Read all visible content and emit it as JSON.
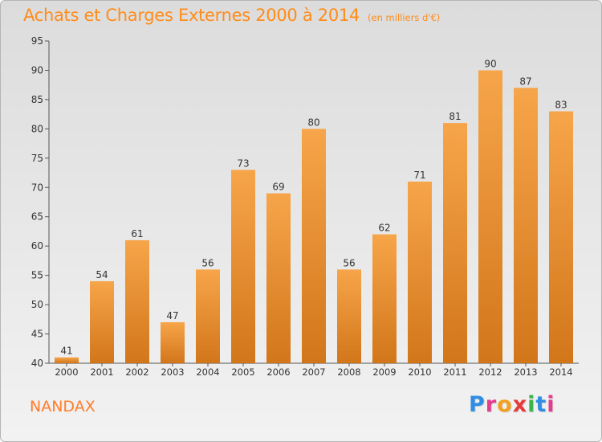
{
  "header": {
    "title": "Achats et Charges Externes 2000 à 2014",
    "subtitle": "(en milliers d'€)"
  },
  "footer": {
    "place": "NANDAX",
    "brand": "Proxiti"
  },
  "colors": {
    "bar_light": "#f7a54a",
    "bar_dark": "#d2761a",
    "title": "#ff8c1a",
    "place": "#ff7d2a"
  },
  "chart_data": {
    "type": "bar",
    "title": "Achats et Charges Externes 2000 à 2014",
    "subtitle": "(en milliers d'€)",
    "categories": [
      "2000",
      "2001",
      "2002",
      "2003",
      "2004",
      "2005",
      "2006",
      "2007",
      "2008",
      "2009",
      "2010",
      "2011",
      "2012",
      "2013",
      "2014"
    ],
    "values": [
      41,
      54,
      61,
      47,
      56,
      73,
      69,
      80,
      56,
      62,
      71,
      81,
      90,
      87,
      83
    ],
    "ylim": [
      40,
      95
    ],
    "yticks": [
      40,
      45,
      50,
      55,
      60,
      65,
      70,
      75,
      80,
      85,
      90,
      95
    ],
    "grid": false,
    "data_labels": true
  }
}
